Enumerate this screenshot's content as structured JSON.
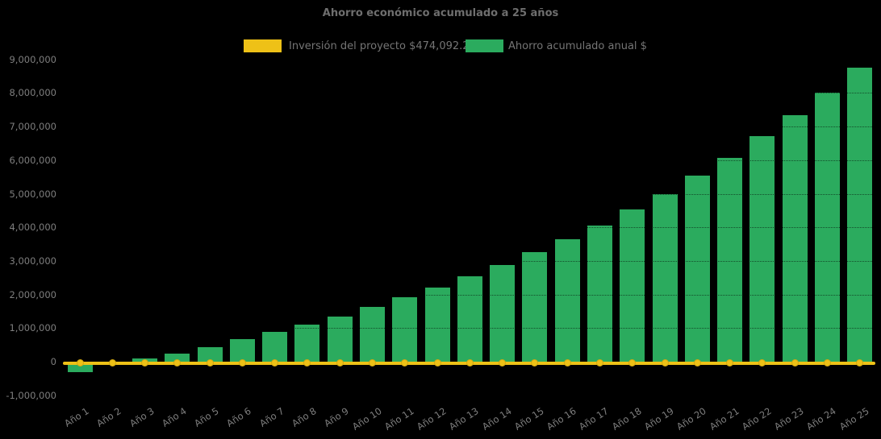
{
  "chart_data": {
    "type": "bar",
    "title": "Ahorro económico acumulado a 25 años",
    "categories": [
      "Año 1",
      "Año 2",
      "Año 3",
      "Año 4",
      "Año 5",
      "Año 6",
      "Año 7",
      "Año 8",
      "Año 9",
      "Año 10",
      "Año 11",
      "Año 12",
      "Año 13",
      "Año 14",
      "Año 15",
      "Año 16",
      "Año 17",
      "Año 18",
      "Año 19",
      "Año 20",
      "Año 21",
      "Año 22",
      "Año 23",
      "Año 24",
      "Año 25"
    ],
    "series": [
      {
        "name": "Inversión del proyecto $474,092.22",
        "render": "line",
        "color": "#EEC117",
        "investment_value": 474092.22,
        "values": [
          0,
          0,
          0,
          0,
          0,
          0,
          0,
          0,
          0,
          0,
          0,
          0,
          0,
          0,
          0,
          0,
          0,
          0,
          0,
          0,
          0,
          0,
          0,
          0,
          0
        ]
      },
      {
        "name": "Ahorro acumulado anual $",
        "render": "bar",
        "color": "#2BAB5E",
        "values": [
          -300000,
          -100000,
          100000,
          230000,
          440000,
          660000,
          890000,
          1100000,
          1350000,
          1630000,
          1920000,
          2210000,
          2540000,
          2880000,
          3260000,
          3650000,
          4060000,
          4530000,
          4990000,
          5540000,
          6070000,
          6720000,
          7340000,
          8010000,
          8750000
        ]
      }
    ],
    "xlabel": "",
    "ylabel": "",
    "ylim": [
      -1000000,
      9000000
    ],
    "yticks": [
      -1000000,
      0,
      1000000,
      2000000,
      3000000,
      4000000,
      5000000,
      6000000,
      7000000,
      8000000,
      9000000
    ],
    "ytick_labels": [
      "-1,000,000",
      "0",
      "1,000,000",
      "2,000,000",
      "3,000,000",
      "4,000,000",
      "5,000,000",
      "6,000,000",
      "7,000,000",
      "8,000,000",
      "9,000,000"
    ],
    "x_tick_rotation": 33,
    "legend_position": "top",
    "grid": false,
    "background_color": "#000000",
    "text_color": "#7E7E7E",
    "title_color": "#6E6E6E"
  }
}
